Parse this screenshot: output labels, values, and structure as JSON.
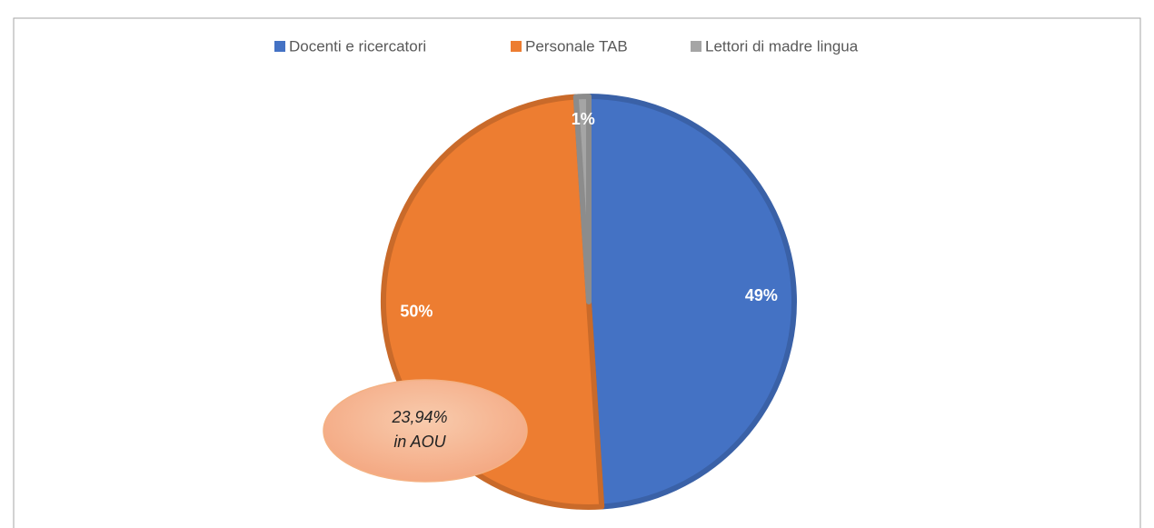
{
  "chart_data": {
    "type": "pie",
    "categories": [
      "Docenti e ricercatori",
      "Personale TAB",
      "Lettori di madre lingua"
    ],
    "values": [
      49,
      50,
      1
    ],
    "value_labels": [
      "49%",
      "50%",
      "1%"
    ],
    "colors": [
      "#4472c4",
      "#ed7d31",
      "#a5a5a5"
    ],
    "legend": "top",
    "annotation": [
      "23,94%",
      "in AOU"
    ]
  }
}
